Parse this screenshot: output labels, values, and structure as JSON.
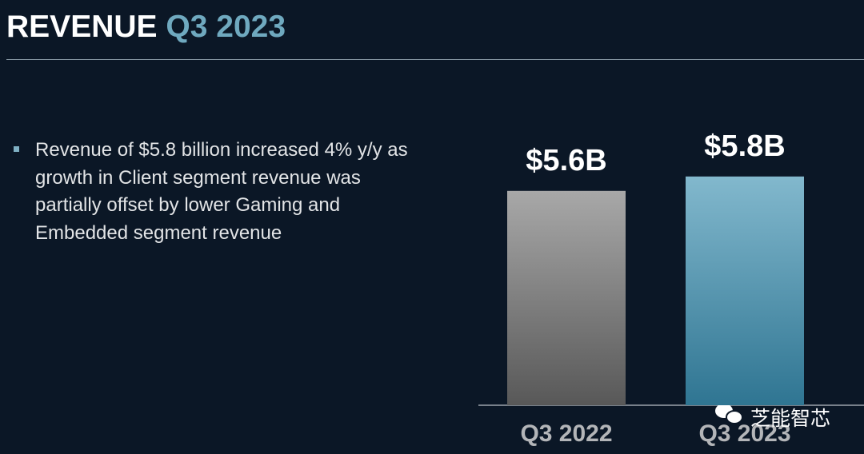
{
  "header": {
    "title": "REVENUE",
    "title_highlight": "Q3 2023"
  },
  "bullets": [
    "Revenue of $5.8 billion increased 4% y/y as growth in Client segment revenue was partially offset by lower Gaming and Embedded segment revenue"
  ],
  "watermark": "芝能智芯",
  "chart_data": {
    "type": "bar",
    "categories": [
      "Q3 2022",
      "Q3 2023"
    ],
    "values": [
      5.6,
      5.8
    ],
    "value_labels": [
      "$5.6B",
      "$5.8B"
    ],
    "colors": [
      [
        "#a8a8a8",
        "#585858"
      ],
      [
        "#82b8cd",
        "#2f7592"
      ]
    ],
    "ylim": [
      2.62,
      6.1
    ]
  }
}
